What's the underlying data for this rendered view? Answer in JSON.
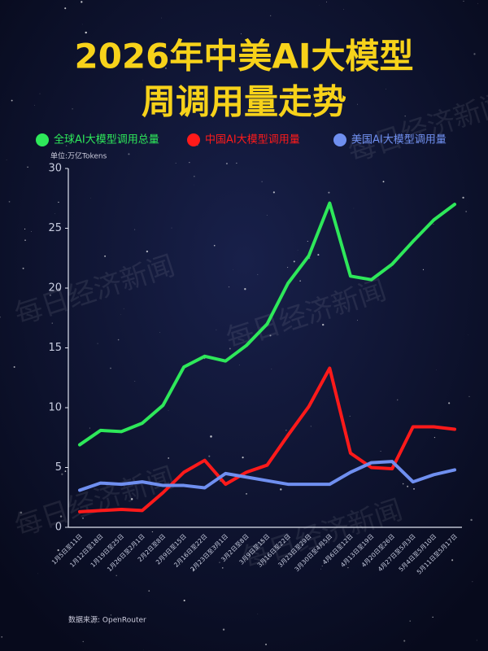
{
  "chart_data": {
    "type": "line",
    "title": [
      "2026年中美AI大模型",
      "周调用量走势"
    ],
    "unit_label": "单位:万亿Tokens",
    "source": "数据来源: OpenRouter",
    "watermark": "每日经济新闻",
    "categories": [
      "1月5日至11日",
      "1月12日至18日",
      "1月19日至25日",
      "1月26日至2月1日",
      "2月2日至8日",
      "2月9日至15日",
      "2月16日至22日",
      "2月23日至3月1日",
      "3月2日至8日",
      "3月9日至15日",
      "3月16日至22日",
      "3月23日至29日",
      "3月30日至4月5日",
      "4月6日至12日",
      "4月13日至19日",
      "4月20日至26日",
      "4月27日至5月3日",
      "5月4日至5月10日",
      "5月11日至5月17日"
    ],
    "series": [
      {
        "name": "全球AI大模型调用总量",
        "color": "#2ee85a",
        "values": [
          6.9,
          8.1,
          8.0,
          8.7,
          10.2,
          13.4,
          14.3,
          13.9,
          15.2,
          17.0,
          20.4,
          22.7,
          27.1,
          21.0,
          20.7,
          22.0,
          23.9,
          25.7,
          27.0
        ]
      },
      {
        "name": "中国AI大模型调用量",
        "color": "#ff1a1a",
        "values": [
          1.3,
          1.4,
          1.5,
          1.4,
          2.9,
          4.6,
          5.6,
          3.6,
          4.6,
          5.2,
          7.7,
          10.1,
          13.3,
          6.2,
          5.0,
          4.9,
          8.4,
          8.4,
          8.2
        ]
      },
      {
        "name": "美国AI大模型调用量",
        "color": "#6f8ff0",
        "values": [
          3.1,
          3.7,
          3.6,
          3.8,
          3.5,
          3.5,
          3.3,
          4.5,
          4.2,
          3.9,
          3.6,
          3.6,
          3.6,
          4.6,
          5.4,
          5.5,
          3.8,
          4.4,
          4.8
        ]
      }
    ],
    "ylim": [
      0,
      30
    ],
    "yticks": [
      0,
      5,
      10,
      15,
      20,
      25,
      30
    ],
    "grid": false
  }
}
